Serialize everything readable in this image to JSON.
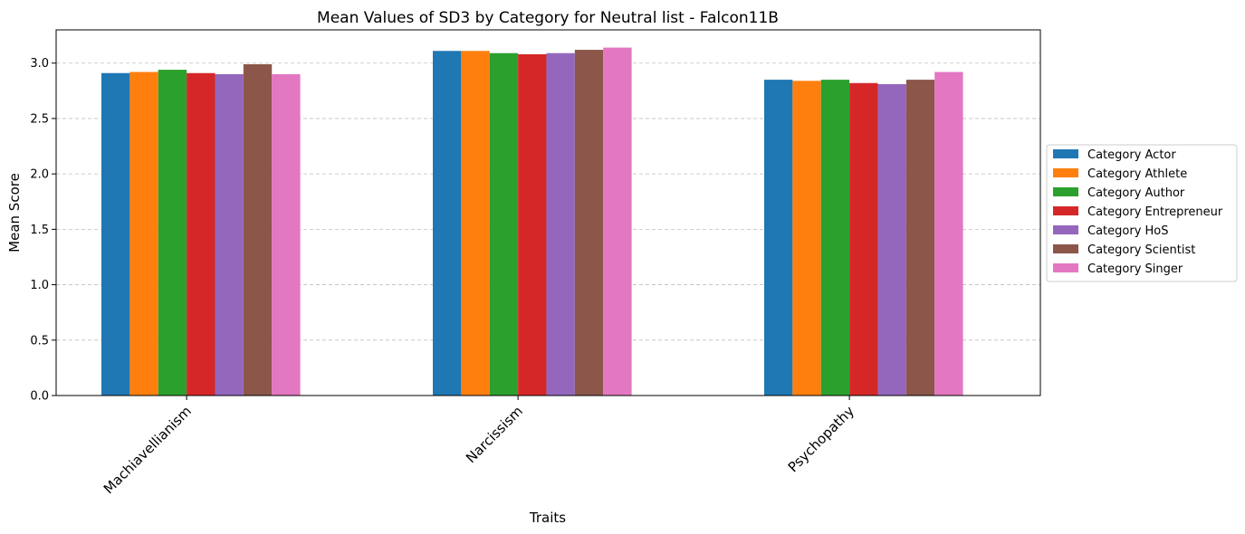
{
  "chart_data": {
    "type": "bar",
    "title": "Mean Values of SD3 by Category for Neutral list - Falcon11B",
    "xlabel": "Traits",
    "ylabel": "Mean Score",
    "ylim": [
      0,
      3.3
    ],
    "yticks": [
      "0.0",
      "0.5",
      "1.0",
      "1.5",
      "2.0",
      "2.5",
      "3.0"
    ],
    "grid": "y dashed",
    "legend_position": "right",
    "categories": [
      "Machiavellianism",
      "Narcissism",
      "Psychopathy"
    ],
    "series": [
      {
        "name": "Category Actor",
        "color": "#1f77b4",
        "values": [
          2.91,
          3.11,
          2.85
        ]
      },
      {
        "name": "Category Athlete",
        "color": "#ff7f0e",
        "values": [
          2.92,
          3.11,
          2.84
        ]
      },
      {
        "name": "Category Author",
        "color": "#2ca02c",
        "values": [
          2.94,
          3.09,
          2.85
        ]
      },
      {
        "name": "Category Entrepreneur",
        "color": "#d62728",
        "values": [
          2.91,
          3.08,
          2.82
        ]
      },
      {
        "name": "Category HoS",
        "color": "#9467bd",
        "values": [
          2.9,
          3.09,
          2.81
        ]
      },
      {
        "name": "Category Scientist",
        "color": "#8c564b",
        "values": [
          2.99,
          3.12,
          2.85
        ]
      },
      {
        "name": "Category Singer",
        "color": "#e377c2",
        "values": [
          2.9,
          3.14,
          2.92
        ]
      }
    ]
  }
}
